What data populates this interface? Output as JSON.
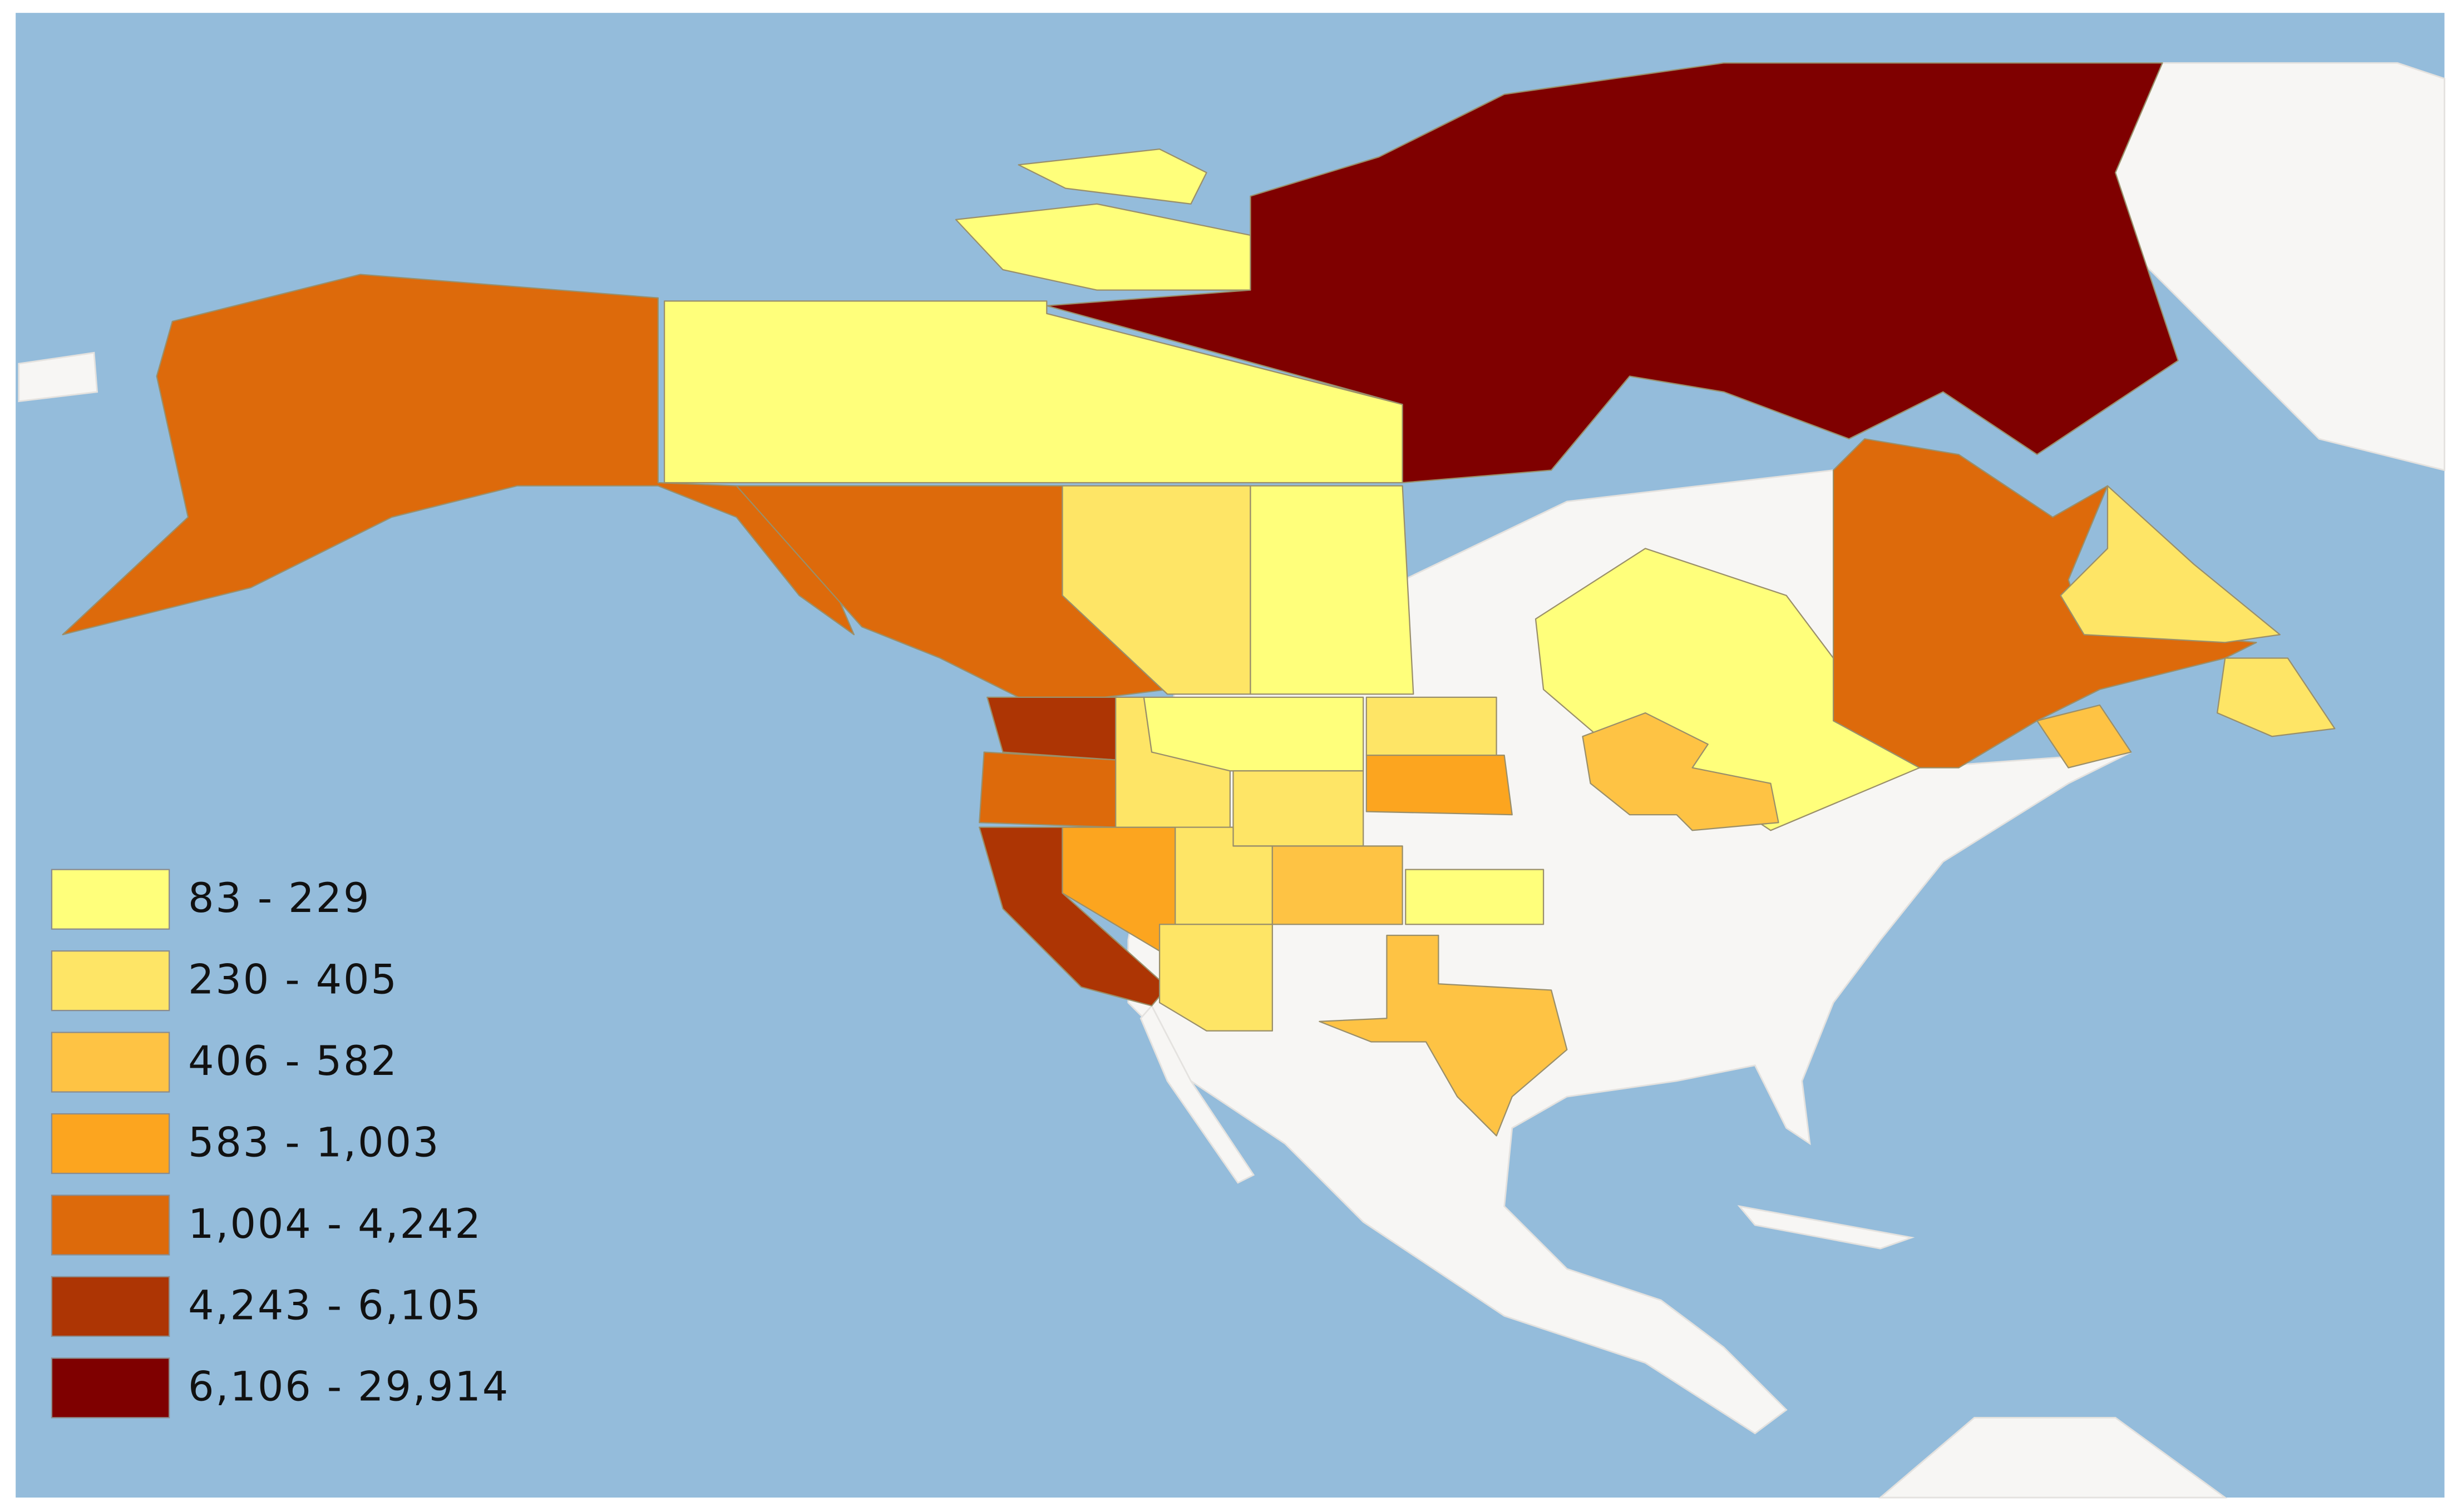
{
  "legend": {
    "items": [
      {
        "label": "83 - 229",
        "color": "#ffff7b"
      },
      {
        "label": "230 - 405",
        "color": "#fee566"
      },
      {
        "label": "406 - 582",
        "color": "#fec344"
      },
      {
        "label": "583 - 1,003",
        "color": "#fca51f"
      },
      {
        "label": "1,004 - 4,242",
        "color": "#dd6a0b"
      },
      {
        "label": "4,243 - 6,105",
        "color": "#ad3504"
      },
      {
        "label": "6,106 - 29,914",
        "color": "#7f0000"
      }
    ]
  }
}
